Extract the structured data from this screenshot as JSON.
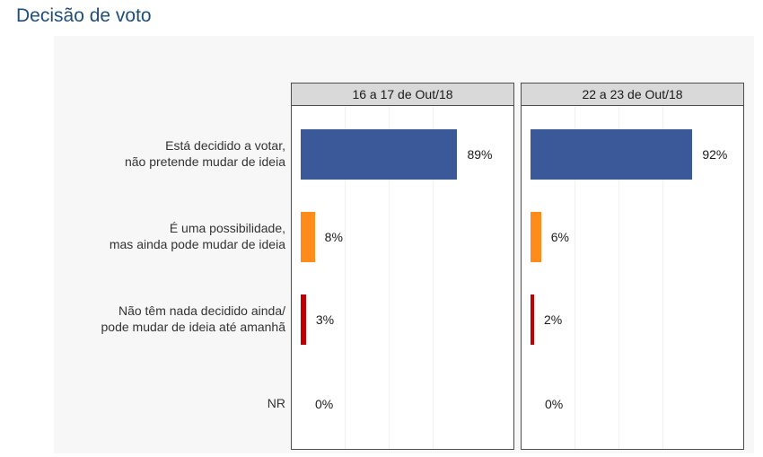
{
  "title": "Decisão de voto",
  "chart_data": {
    "type": "bar",
    "orientation": "horizontal",
    "categories": [
      "Está decidido a votar,\nnão pretende mudar de ideia",
      "É uma possibilidade,\nmas ainda pode mudar de ideia",
      "Não têm nada decidido ainda/\npode mudar de ideia até amanhã",
      "NR"
    ],
    "category_colors": [
      "#3b5998",
      "#ff8c1a",
      "#c00000",
      "#c00000"
    ],
    "panels": [
      {
        "name": "16 a 17 de Out/18",
        "values": [
          89,
          8,
          3,
          0
        ],
        "labels": [
          "89%",
          "8%",
          "3%",
          "0%"
        ]
      },
      {
        "name": "22 a 23 de Out/18",
        "values": [
          92,
          6,
          2,
          0
        ],
        "labels": [
          "92%",
          "6%",
          "2%",
          "0%"
        ]
      }
    ],
    "xlim": [
      0,
      100
    ],
    "unit": "%",
    "grid": true,
    "legend": "none"
  }
}
